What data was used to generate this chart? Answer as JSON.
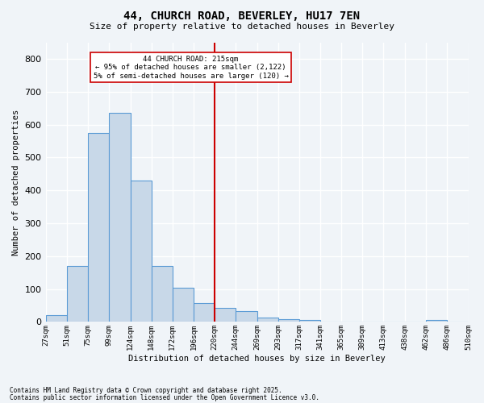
{
  "title": "44, CHURCH ROAD, BEVERLEY, HU17 7EN",
  "subtitle": "Size of property relative to detached houses in Beverley",
  "xlabel": "Distribution of detached houses by size in Beverley",
  "ylabel": "Number of detached properties",
  "footnote1": "Contains HM Land Registry data © Crown copyright and database right 2025.",
  "footnote2": "Contains public sector information licensed under the Open Government Licence v3.0.",
  "bins": [
    "27sqm",
    "51sqm",
    "75sqm",
    "99sqm",
    "124sqm",
    "148sqm",
    "172sqm",
    "196sqm",
    "220sqm",
    "244sqm",
    "269sqm",
    "293sqm",
    "317sqm",
    "341sqm",
    "365sqm",
    "389sqm",
    "413sqm",
    "438sqm",
    "462sqm",
    "486sqm",
    "510sqm"
  ],
  "bin_edges": [
    27,
    51,
    75,
    99,
    124,
    148,
    172,
    196,
    220,
    244,
    269,
    293,
    317,
    341,
    365,
    389,
    413,
    438,
    462,
    486,
    510
  ],
  "values": [
    20,
    170,
    575,
    635,
    430,
    170,
    105,
    58,
    43,
    32,
    13,
    8,
    5,
    0,
    0,
    0,
    0,
    0,
    5,
    0,
    0
  ],
  "bar_color": "#c8d8e8",
  "bar_edge_color": "#5b9bd5",
  "background_color": "#f0f4f8",
  "grid_color": "#ffffff",
  "vline_x": 220,
  "vline_color": "#cc0000",
  "annotation_text": "44 CHURCH ROAD: 215sqm\n← 95% of detached houses are smaller (2,122)\n5% of semi-detached houses are larger (120) →",
  "annotation_box_edge": "#cc0000",
  "ylim": [
    0,
    850
  ],
  "yticks": [
    0,
    100,
    200,
    300,
    400,
    500,
    600,
    700,
    800
  ]
}
